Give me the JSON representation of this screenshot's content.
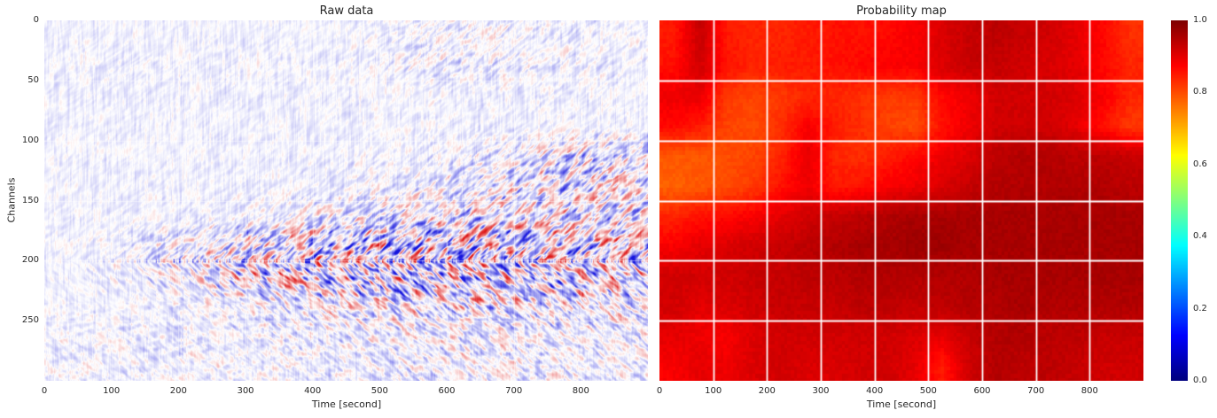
{
  "window": {
    "background": "#ffffff",
    "text_color": "#262626"
  },
  "chart_data": [
    {
      "id": "raw_data",
      "type": "heatmap",
      "title": "Raw data",
      "xlabel": "Time [second]",
      "ylabel": "Channels",
      "xlim": [
        0,
        900
      ],
      "ylim": [
        300,
        0
      ],
      "xtick_labels": [
        "0",
        "100",
        "200",
        "300",
        "400",
        "500",
        "600",
        "700",
        "800"
      ],
      "xtick_values": [
        0,
        100,
        200,
        300,
        400,
        500,
        600,
        700,
        800
      ],
      "ytick_labels": [
        "0",
        "50",
        "100",
        "150",
        "200",
        "250"
      ],
      "ytick_values": [
        0,
        50,
        100,
        150,
        200,
        250
      ],
      "grid": true,
      "grid_color": "#ffffff",
      "value_range": [
        -1,
        1
      ],
      "colormap": {
        "name": "blue-white-red seismic",
        "stops": [
          {
            "pos": 0.0,
            "color": "#1515dd"
          },
          {
            "pos": 0.5,
            "color": "#ffffff"
          },
          {
            "pos": 1.0,
            "color": "#dd1515"
          }
        ]
      },
      "description": "Waveform intensity image: pale blue vertical noise streaks in background; strong oscillating red/blue band centred near channel 200 starting around t=130 s, widening into a chevron-shaped wake toward later times; secondary band near channel 125 after t=650 s; faint dotted band near channels 20-40 after t=500 s; faint diagonal streaks below channel 240.",
      "time_bin_centers_s": [
        25,
        75,
        125,
        175,
        225,
        275,
        325,
        375,
        425,
        475,
        525,
        575,
        625,
        675,
        725,
        775,
        825,
        875
      ],
      "channel_bin_centers": [
        12.5,
        37.5,
        62.5,
        87.5,
        112.5,
        137.5,
        162.5,
        187.5,
        212.5,
        237.5,
        262.5,
        287.5
      ],
      "amplitude_envelope": [
        [
          0.05,
          0.06,
          0.06,
          0.06,
          0.06,
          0.06,
          0.06,
          0.07,
          0.08,
          0.1,
          0.18,
          0.22,
          0.22,
          0.2,
          0.18,
          0.16,
          0.14,
          0.12
        ],
        [
          0.1,
          0.12,
          0.12,
          0.12,
          0.1,
          0.1,
          0.1,
          0.1,
          0.1,
          0.12,
          0.2,
          0.25,
          0.25,
          0.22,
          0.2,
          0.18,
          0.15,
          0.12
        ],
        [
          0.07,
          0.07,
          0.07,
          0.07,
          0.07,
          0.07,
          0.07,
          0.07,
          0.08,
          0.08,
          0.09,
          0.1,
          0.1,
          0.1,
          0.1,
          0.1,
          0.1,
          0.1
        ],
        [
          0.07,
          0.07,
          0.07,
          0.07,
          0.07,
          0.07,
          0.07,
          0.07,
          0.08,
          0.08,
          0.09,
          0.1,
          0.1,
          0.1,
          0.1,
          0.1,
          0.1,
          0.1
        ],
        [
          0.07,
          0.07,
          0.07,
          0.07,
          0.07,
          0.07,
          0.08,
          0.08,
          0.09,
          0.1,
          0.12,
          0.15,
          0.22,
          0.3,
          0.45,
          0.55,
          0.6,
          0.6
        ],
        [
          0.08,
          0.08,
          0.08,
          0.08,
          0.08,
          0.09,
          0.1,
          0.12,
          0.14,
          0.18,
          0.25,
          0.3,
          0.38,
          0.45,
          0.55,
          0.6,
          0.62,
          0.6
        ],
        [
          0.08,
          0.08,
          0.09,
          0.1,
          0.12,
          0.15,
          0.22,
          0.3,
          0.38,
          0.45,
          0.5,
          0.55,
          0.6,
          0.62,
          0.65,
          0.65,
          0.62,
          0.6
        ],
        [
          0.1,
          0.12,
          0.2,
          0.35,
          0.55,
          0.7,
          0.8,
          0.85,
          0.9,
          0.95,
          1.0,
          1.0,
          1.0,
          1.0,
          0.95,
          0.9,
          0.85,
          0.8
        ],
        [
          0.1,
          0.12,
          0.2,
          0.35,
          0.55,
          0.7,
          0.8,
          0.85,
          0.9,
          0.95,
          1.0,
          1.0,
          1.0,
          1.0,
          0.95,
          0.9,
          0.85,
          0.8
        ],
        [
          0.08,
          0.09,
          0.1,
          0.14,
          0.2,
          0.28,
          0.35,
          0.42,
          0.48,
          0.52,
          0.55,
          0.58,
          0.6,
          0.6,
          0.58,
          0.55,
          0.52,
          0.5
        ],
        [
          0.1,
          0.12,
          0.14,
          0.15,
          0.16,
          0.18,
          0.2,
          0.25,
          0.28,
          0.3,
          0.32,
          0.35,
          0.35,
          0.35,
          0.33,
          0.3,
          0.3,
          0.3
        ],
        [
          0.12,
          0.14,
          0.15,
          0.15,
          0.15,
          0.16,
          0.16,
          0.18,
          0.2,
          0.22,
          0.25,
          0.28,
          0.28,
          0.28,
          0.26,
          0.25,
          0.25,
          0.25
        ]
      ]
    },
    {
      "id": "probability_map",
      "type": "heatmap",
      "title": "Probability map",
      "xlabel": "Time [second]",
      "ylabel": "",
      "xlim": [
        0,
        900
      ],
      "ylim": [
        300,
        0
      ],
      "xtick_labels": [
        "0",
        "100",
        "200",
        "300",
        "400",
        "500",
        "600",
        "700",
        "800"
      ],
      "xtick_values": [
        0,
        100,
        200,
        300,
        400,
        500,
        600,
        700,
        800
      ],
      "ytick_labels": [],
      "ytick_values": [],
      "grid": true,
      "grid_color": "#ffffff",
      "value_range": [
        0,
        1
      ],
      "colormap": {
        "name": "jet",
        "stops": [
          {
            "pos": 0.0,
            "color": "#00007f"
          },
          {
            "pos": 0.125,
            "color": "#0000ff"
          },
          {
            "pos": 0.375,
            "color": "#00ffff"
          },
          {
            "pos": 0.625,
            "color": "#ffff00"
          },
          {
            "pos": 0.875,
            "color": "#ff0000"
          },
          {
            "pos": 1.0,
            "color": "#7f0000"
          }
        ]
      },
      "time_bin_centers_s": [
        25,
        75,
        125,
        175,
        225,
        275,
        325,
        375,
        425,
        475,
        525,
        575,
        625,
        675,
        725,
        775,
        825,
        875
      ],
      "channel_bin_centers": [
        12.5,
        37.5,
        62.5,
        87.5,
        112.5,
        137.5,
        162.5,
        187.5,
        212.5,
        237.5,
        262.5,
        287.5
      ],
      "values": [
        [
          0.85,
          0.93,
          0.85,
          0.84,
          0.84,
          0.85,
          0.86,
          0.86,
          0.87,
          0.88,
          0.91,
          0.93,
          0.94,
          0.93,
          0.92,
          0.9,
          0.87,
          0.83
        ],
        [
          0.86,
          0.92,
          0.86,
          0.84,
          0.85,
          0.85,
          0.86,
          0.87,
          0.88,
          0.88,
          0.91,
          0.93,
          0.93,
          0.92,
          0.91,
          0.9,
          0.87,
          0.84
        ],
        [
          0.89,
          0.9,
          0.82,
          0.81,
          0.82,
          0.84,
          0.84,
          0.83,
          0.82,
          0.82,
          0.87,
          0.89,
          0.92,
          0.92,
          0.92,
          0.91,
          0.88,
          0.84
        ],
        [
          0.87,
          0.85,
          0.81,
          0.8,
          0.83,
          0.88,
          0.85,
          0.83,
          0.81,
          0.8,
          0.86,
          0.89,
          0.92,
          0.92,
          0.92,
          0.9,
          0.86,
          0.82
        ],
        [
          0.79,
          0.79,
          0.8,
          0.81,
          0.84,
          0.9,
          0.84,
          0.83,
          0.85,
          0.87,
          0.89,
          0.91,
          0.94,
          0.95,
          0.95,
          0.94,
          0.94,
          0.93
        ],
        [
          0.78,
          0.79,
          0.8,
          0.82,
          0.86,
          0.89,
          0.85,
          0.86,
          0.88,
          0.89,
          0.91,
          0.93,
          0.95,
          0.95,
          0.95,
          0.95,
          0.95,
          0.94
        ],
        [
          0.84,
          0.86,
          0.87,
          0.88,
          0.9,
          0.92,
          0.93,
          0.94,
          0.95,
          0.96,
          0.96,
          0.96,
          0.96,
          0.96,
          0.96,
          0.96,
          0.96,
          0.96
        ],
        [
          0.88,
          0.9,
          0.91,
          0.92,
          0.93,
          0.94,
          0.95,
          0.96,
          0.96,
          0.97,
          0.97,
          0.96,
          0.96,
          0.96,
          0.96,
          0.96,
          0.96,
          0.96
        ],
        [
          0.92,
          0.92,
          0.92,
          0.93,
          0.93,
          0.94,
          0.94,
          0.95,
          0.95,
          0.95,
          0.95,
          0.95,
          0.96,
          0.96,
          0.96,
          0.96,
          0.96,
          0.96
        ],
        [
          0.92,
          0.9,
          0.91,
          0.92,
          0.93,
          0.93,
          0.93,
          0.94,
          0.94,
          0.93,
          0.94,
          0.95,
          0.95,
          0.96,
          0.95,
          0.95,
          0.95,
          0.95
        ],
        [
          0.9,
          0.89,
          0.88,
          0.91,
          0.92,
          0.92,
          0.92,
          0.92,
          0.92,
          0.91,
          0.9,
          0.93,
          0.95,
          0.95,
          0.94,
          0.94,
          0.93,
          0.93
        ],
        [
          0.88,
          0.9,
          0.89,
          0.91,
          0.92,
          0.91,
          0.91,
          0.92,
          0.92,
          0.9,
          0.85,
          0.92,
          0.95,
          0.94,
          0.94,
          0.93,
          0.92,
          0.92
        ]
      ]
    }
  ],
  "colorbar": {
    "min": 0.0,
    "max": 1.0,
    "colormap": "jet",
    "tick_labels": [
      "1.0",
      "0.8",
      "0.6",
      "0.4",
      "0.2",
      "0.0"
    ],
    "tick_values": [
      1.0,
      0.8,
      0.6,
      0.4,
      0.2,
      0.0
    ]
  }
}
